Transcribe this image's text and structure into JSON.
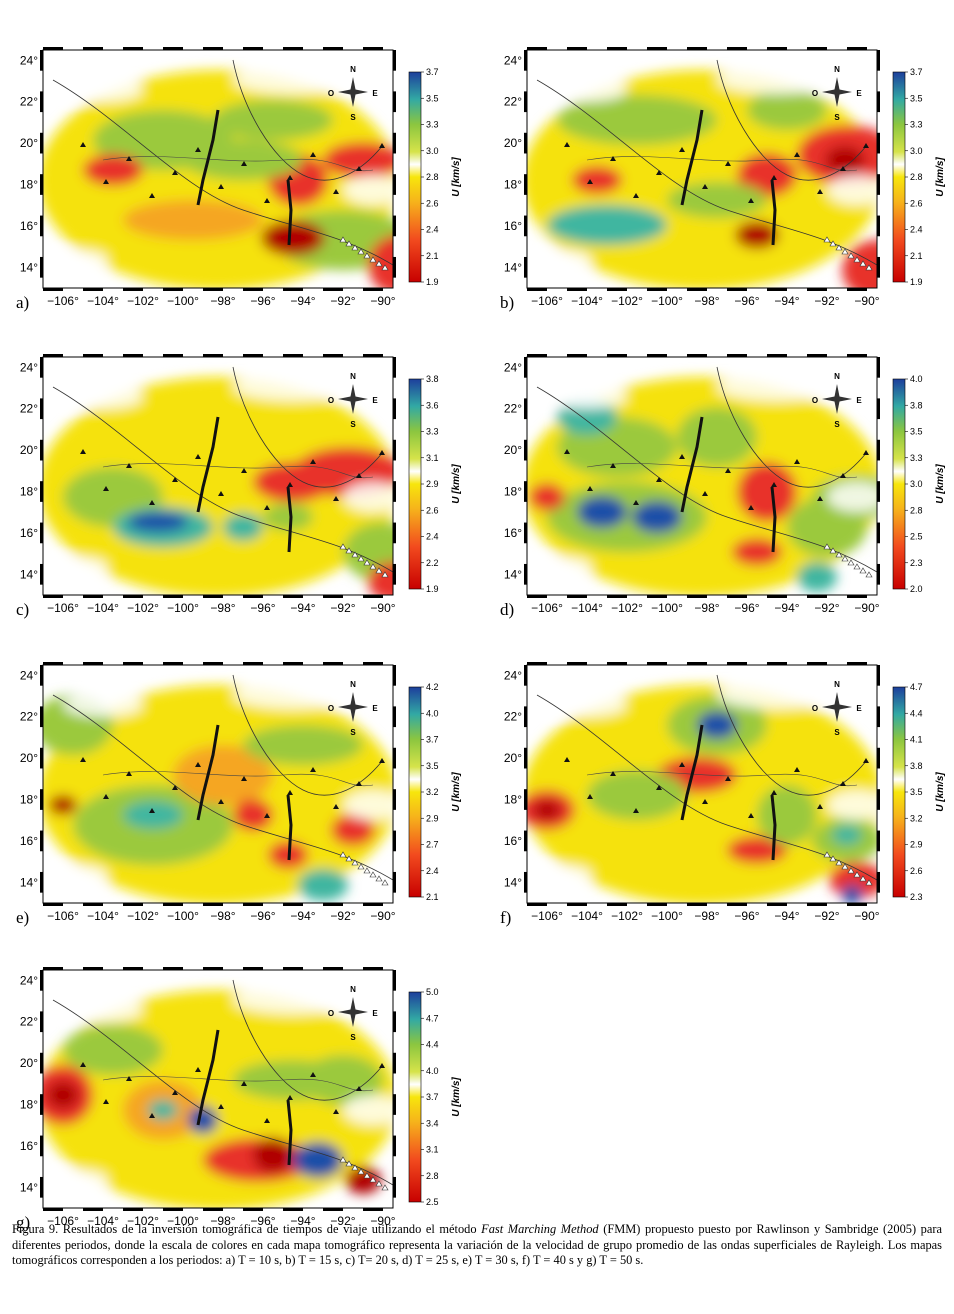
{
  "figure": {
    "lat_ticks": [
      "24°",
      "22°",
      "20°",
      "18°",
      "16°",
      "14°"
    ],
    "lon_ticks": [
      "−106°",
      "−104°",
      "−102°",
      "−100°",
      "−98°",
      "−96°",
      "−94°",
      "−92°",
      "−90°"
    ],
    "compass": {
      "n": "N",
      "s": "S",
      "e": "E",
      "o": "O"
    },
    "colorbar_title": "U [km/s]",
    "panels": [
      {
        "label": "a)",
        "scale": [
          "3.7",
          "3.5",
          "3.3",
          "3.0",
          "2.8",
          "2.6",
          "2.4",
          "2.1",
          "1.9"
        ]
      },
      {
        "label": "b)",
        "scale": [
          "3.7",
          "3.5",
          "3.3",
          "3.0",
          "2.8",
          "2.6",
          "2.4",
          "2.1",
          "1.9"
        ]
      },
      {
        "label": "c)",
        "scale": [
          "3.8",
          "3.6",
          "3.3",
          "3.1",
          "2.9",
          "2.6",
          "2.4",
          "2.2",
          "1.9"
        ]
      },
      {
        "label": "d)",
        "scale": [
          "4.0",
          "3.8",
          "3.5",
          "3.3",
          "3.0",
          "2.8",
          "2.5",
          "2.3",
          "2.0"
        ]
      },
      {
        "label": "e)",
        "scale": [
          "4.2",
          "4.0",
          "3.7",
          "3.5",
          "3.2",
          "2.9",
          "2.7",
          "2.4",
          "2.1"
        ]
      },
      {
        "label": "f)",
        "scale": [
          "4.7",
          "4.4",
          "4.1",
          "3.8",
          "3.5",
          "3.2",
          "2.9",
          "2.6",
          "2.3"
        ]
      },
      {
        "label": "g)",
        "scale": [
          "5.0",
          "4.7",
          "4.4",
          "4.0",
          "3.7",
          "3.4",
          "3.1",
          "2.8",
          "2.5"
        ]
      }
    ],
    "colors": {
      "low": "#b00000",
      "red": "#e8322a",
      "orange": "#f5a623",
      "yellow": "#f5e20a",
      "green": "#9bc93c",
      "teal": "#3fb6a0",
      "blue": "#1f4fa8"
    }
  },
  "caption": {
    "part1": "Figura 9. Resultados de la inversión tomográfica de tiempos de viaje utilizando el método ",
    "method": "Fast Marching Method",
    "part2": " (FMM) propuesto puesto por Rawlinson y Sambridge (2005) para diferentes periodos, donde la escala de colores en cada mapa tomográfico representa la variación de la velocidad de grupo promedio de las ondas superficiales de Rayleigh. Los mapas tomográficos  corresponden a los periodos: a) T = 10 s, b) T = 15 s, c) T= 20 s, d) T = 25 s, e) T = 30 s, f) T = 40 s y  g) T = 50 s."
  }
}
